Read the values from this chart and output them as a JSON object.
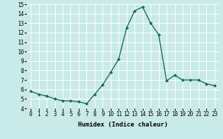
{
  "x": [
    0,
    1,
    2,
    3,
    4,
    5,
    6,
    7,
    8,
    9,
    10,
    11,
    12,
    13,
    14,
    15,
    16,
    17,
    18,
    19,
    20,
    21,
    22,
    23
  ],
  "y": [
    5.8,
    5.5,
    5.3,
    5.0,
    4.8,
    4.8,
    4.7,
    4.5,
    5.5,
    6.5,
    7.8,
    9.2,
    12.5,
    14.3,
    14.7,
    13.0,
    11.8,
    6.9,
    7.5,
    7.0,
    7.0,
    7.0,
    6.6,
    6.4
  ],
  "line_color": "#1a6b5a",
  "marker": "D",
  "marker_size": 2.0,
  "bg_color": "#c8eae8",
  "grid_color": "#ffffff",
  "xlabel": "Humidex (Indice chaleur)",
  "xlim": [
    -0.5,
    23.5
  ],
  "ylim": [
    4,
    15
  ],
  "yticks": [
    4,
    5,
    6,
    7,
    8,
    9,
    10,
    11,
    12,
    13,
    14,
    15
  ],
  "xticks": [
    0,
    1,
    2,
    3,
    4,
    5,
    6,
    7,
    8,
    9,
    10,
    11,
    12,
    13,
    14,
    15,
    16,
    17,
    18,
    19,
    20,
    21,
    22,
    23
  ],
  "xlabel_fontsize": 6.5,
  "tick_fontsize": 5.5,
  "line_width": 1.0
}
